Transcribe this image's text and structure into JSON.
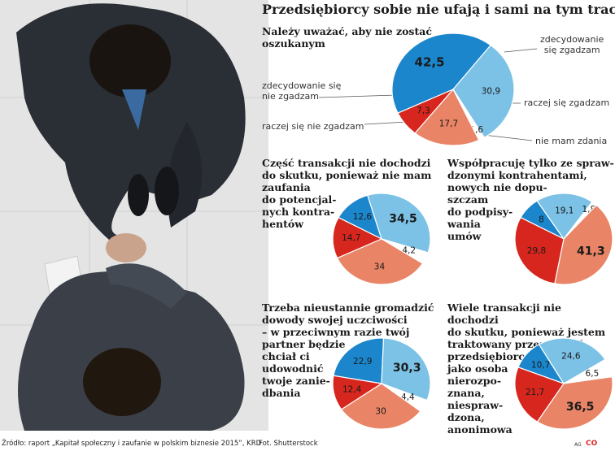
{
  "title": "Przedsiębiorcy sobie nie ufają i sami na tym tracą",
  "colors": {
    "zdecydowanie_zgadzam": "#1b86cc",
    "raczej_zgadzam": "#7cc1e6",
    "nie_mam_zdania": "#ffffff",
    "raczej_nie_zgadzam": "#e98466",
    "zdecydowanie_nie_zgadzam": "#d7261e"
  },
  "legend": {
    "zdecydowanie_zgadzam": "zdecydowanie\nsię zgadzam",
    "raczej_zgadzam": "raczej się zgadzam",
    "nie_mam_zdania": "nie mam zdania",
    "raczej_nie_zgadzam": "raczej się nie zgadzam",
    "zdecydowanie_nie_zgadzam": "zdecydowanie się\nnie zgadzam"
  },
  "chart_data": [
    {
      "type": "pie",
      "title": "Należy uważać, aby nie zostać\noszukanym",
      "categories": [
        "zdecydowanie się zgadzam",
        "raczej się zgadzam",
        "nie mam zdania",
        "raczej się nie zgadzam",
        "zdecydowanie się nie zgadzam"
      ],
      "values": [
        42.5,
        30.9,
        1.6,
        17.7,
        7.3
      ],
      "labels": [
        "42,5",
        "30,9",
        "1,6",
        "17,7",
        "7,3"
      ]
    },
    {
      "type": "pie",
      "title": "Część transakcji nie dochodzi\ndo skutku, ponieważ nie mam\nzaufania\ndo potencjal-\nnych kontra-\nhentów",
      "categories": [
        "zdecydowanie się zgadzam",
        "raczej się zgadzam",
        "nie mam zdania",
        "raczej się nie zgadzam",
        "zdecydowanie się nie zgadzam"
      ],
      "values": [
        12.6,
        34.5,
        4.2,
        34,
        14.7
      ],
      "labels": [
        "12,6",
        "34,5",
        "4,2",
        "34",
        "14,7"
      ]
    },
    {
      "type": "pie",
      "title": "Współpracuję tylko ze spraw-\ndzonymi kontrahentami,\nnowych nie dopu-\nszczam\ndo podpisy-\nwania\numów",
      "categories": [
        "zdecydowanie się zgadzam",
        "raczej się zgadzam",
        "nie mam zdania",
        "raczej się nie zgadzam",
        "zdecydowanie się nie zgadzam"
      ],
      "values": [
        8,
        19.1,
        1.8,
        41.3,
        29.8
      ],
      "labels": [
        "8",
        "19,1",
        "1,8",
        "41,3",
        "29,8"
      ]
    },
    {
      "type": "pie",
      "title": "Trzeba nieustannie gromadzić\ndowody swojej uczciwości\n– w przeciwnym razie twój\npartner będzie\nchciał ci\nudowodnić\ntwoje zanie-\ndbania",
      "categories": [
        "zdecydowanie się zgadzam",
        "raczej się zgadzam",
        "nie mam zdania",
        "raczej się nie zgadzam",
        "zdecydowanie się nie zgadzam"
      ],
      "values": [
        22.9,
        30.3,
        4.4,
        30,
        12.4
      ],
      "labels": [
        "22,9",
        "30,3",
        "4,4",
        "30",
        "12,4"
      ]
    },
    {
      "type": "pie",
      "title": "Wiele transakcji nie dochodzi\ndo skutku, ponieważ jestem\ntraktowany przez innych\nprzedsiębiorców\njako osoba\nnierozpo-\nznana,\nniespraw-\ndzona,\nanonimowa",
      "categories": [
        "zdecydowanie się zgadzam",
        "raczej się zgadzam",
        "nie mam zdania",
        "raczej się nie zgadzam",
        "zdecydowanie się nie zgadzam"
      ],
      "values": [
        10.7,
        24.6,
        6.5,
        36.5,
        21.7
      ],
      "labels": [
        "10,7",
        "24,6",
        "6,5",
        "36,5",
        "21,7"
      ]
    }
  ],
  "footer": {
    "source": "Źródło: raport „Kapitał społeczny i zaufanie w polskim biznesie 2015”, KRD",
    "photo": "Fot. Shutterstock",
    "ag": "AG",
    "logo": "CO"
  }
}
